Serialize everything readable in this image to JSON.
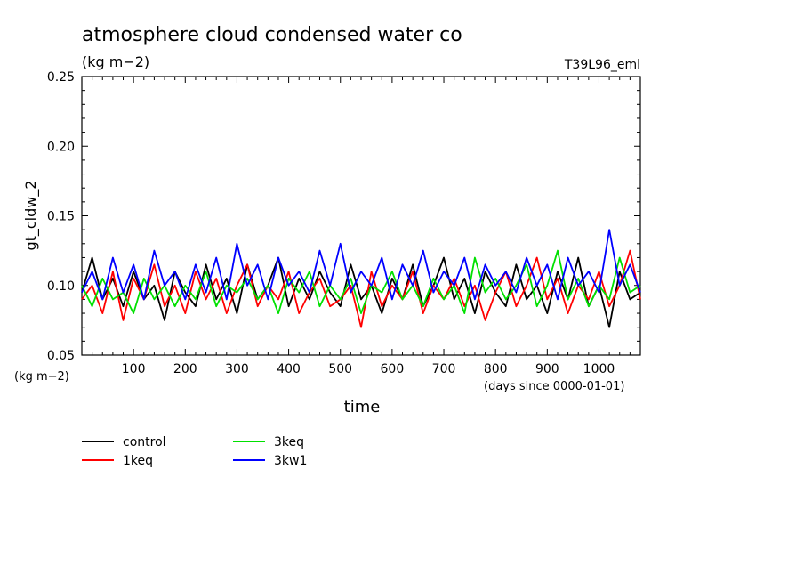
{
  "chart_data": {
    "type": "line",
    "title": "atmosphere cloud condensed water co",
    "subtitle": "(kg m−2)",
    "run_label": "T39L96_eml",
    "ylabel": "gt_cldw_2",
    "y_unit": "(kg m−2)",
    "xlabel": "time",
    "x_unit": "(days since 0000-01-01)",
    "xlim": [
      0,
      1080
    ],
    "ylim": [
      0.05,
      0.25
    ],
    "x_ticks": [
      100,
      200,
      300,
      400,
      500,
      600,
      700,
      800,
      900,
      1000
    ],
    "y_ticks": [
      "0.05",
      "0.10",
      "0.15",
      "0.20",
      "0.25"
    ],
    "grid": false,
    "legend_position": "bottom-left",
    "series": [
      {
        "name": "control",
        "color": "#000000",
        "x": [
          0,
          20,
          40,
          60,
          80,
          100,
          120,
          140,
          160,
          180,
          200,
          220,
          240,
          260,
          280,
          300,
          320,
          340,
          360,
          380,
          400,
          420,
          440,
          460,
          480,
          500,
          520,
          540,
          560,
          580,
          600,
          620,
          640,
          660,
          680,
          700,
          720,
          740,
          760,
          780,
          800,
          820,
          840,
          860,
          880,
          900,
          920,
          940,
          960,
          980,
          1000,
          1020,
          1040,
          1060,
          1080
        ],
        "values": [
          0.095,
          0.12,
          0.09,
          0.105,
          0.085,
          0.11,
          0.09,
          0.1,
          0.075,
          0.11,
          0.095,
          0.085,
          0.115,
          0.09,
          0.105,
          0.08,
          0.115,
          0.09,
          0.1,
          0.12,
          0.085,
          0.105,
          0.09,
          0.11,
          0.095,
          0.085,
          0.115,
          0.09,
          0.1,
          0.08,
          0.105,
          0.09,
          0.115,
          0.085,
          0.1,
          0.12,
          0.09,
          0.105,
          0.08,
          0.11,
          0.095,
          0.085,
          0.115,
          0.09,
          0.1,
          0.08,
          0.11,
          0.09,
          0.12,
          0.085,
          0.1,
          0.07,
          0.11,
          0.09,
          0.095
        ]
      },
      {
        "name": "1keq",
        "color": "#ff0000",
        "x": [
          0,
          20,
          40,
          60,
          80,
          100,
          120,
          140,
          160,
          180,
          200,
          220,
          240,
          260,
          280,
          300,
          320,
          340,
          360,
          380,
          400,
          420,
          440,
          460,
          480,
          500,
          520,
          540,
          560,
          580,
          600,
          620,
          640,
          660,
          680,
          700,
          720,
          740,
          760,
          780,
          800,
          820,
          840,
          860,
          880,
          900,
          920,
          940,
          960,
          980,
          1000,
          1020,
          1040,
          1060,
          1080
        ],
        "values": [
          0.09,
          0.1,
          0.08,
          0.11,
          0.075,
          0.105,
          0.09,
          0.115,
          0.085,
          0.1,
          0.08,
          0.11,
          0.09,
          0.105,
          0.08,
          0.1,
          0.115,
          0.085,
          0.1,
          0.09,
          0.11,
          0.08,
          0.095,
          0.105,
          0.085,
          0.09,
          0.1,
          0.07,
          0.11,
          0.085,
          0.1,
          0.09,
          0.11,
          0.08,
          0.1,
          0.09,
          0.105,
          0.085,
          0.1,
          0.075,
          0.095,
          0.11,
          0.085,
          0.1,
          0.12,
          0.09,
          0.105,
          0.08,
          0.1,
          0.09,
          0.11,
          0.085,
          0.1,
          0.125,
          0.09
        ]
      },
      {
        "name": "3keq",
        "color": "#00e000",
        "x": [
          0,
          20,
          40,
          60,
          80,
          100,
          120,
          140,
          160,
          180,
          200,
          220,
          240,
          260,
          280,
          300,
          320,
          340,
          360,
          380,
          400,
          420,
          440,
          460,
          480,
          500,
          520,
          540,
          560,
          580,
          600,
          620,
          640,
          660,
          680,
          700,
          720,
          740,
          760,
          780,
          800,
          820,
          840,
          860,
          880,
          900,
          920,
          940,
          960,
          980,
          1000,
          1020,
          1040,
          1060,
          1080
        ],
        "values": [
          0.1,
          0.085,
          0.105,
          0.09,
          0.095,
          0.08,
          0.105,
          0.09,
          0.1,
          0.085,
          0.1,
          0.09,
          0.11,
          0.085,
          0.1,
          0.095,
          0.105,
          0.09,
          0.1,
          0.08,
          0.105,
          0.095,
          0.11,
          0.085,
          0.1,
          0.09,
          0.105,
          0.08,
          0.1,
          0.095,
          0.11,
          0.09,
          0.1,
          0.085,
          0.105,
          0.09,
          0.1,
          0.08,
          0.12,
          0.095,
          0.105,
          0.09,
          0.1,
          0.115,
          0.085,
          0.1,
          0.125,
          0.09,
          0.105,
          0.085,
          0.1,
          0.09,
          0.12,
          0.095,
          0.1
        ]
      },
      {
        "name": "3kw1",
        "color": "#0000ff",
        "x": [
          0,
          20,
          40,
          60,
          80,
          100,
          120,
          140,
          160,
          180,
          200,
          220,
          240,
          260,
          280,
          300,
          320,
          340,
          360,
          380,
          400,
          420,
          440,
          460,
          480,
          500,
          520,
          540,
          560,
          580,
          600,
          620,
          640,
          660,
          680,
          700,
          720,
          740,
          760,
          780,
          800,
          820,
          840,
          860,
          880,
          900,
          920,
          940,
          960,
          980,
          1000,
          1020,
          1040,
          1060,
          1080
        ],
        "values": [
          0.095,
          0.11,
          0.09,
          0.12,
          0.095,
          0.115,
          0.09,
          0.125,
          0.1,
          0.11,
          0.09,
          0.115,
          0.095,
          0.12,
          0.09,
          0.13,
          0.1,
          0.115,
          0.09,
          0.12,
          0.1,
          0.11,
          0.095,
          0.125,
          0.1,
          0.13,
          0.095,
          0.11,
          0.1,
          0.12,
          0.09,
          0.115,
          0.1,
          0.125,
          0.095,
          0.11,
          0.1,
          0.12,
          0.09,
          0.115,
          0.1,
          0.11,
          0.095,
          0.12,
          0.1,
          0.115,
          0.09,
          0.12,
          0.1,
          0.11,
          0.095,
          0.14,
          0.1,
          0.115,
          0.095
        ]
      }
    ]
  }
}
